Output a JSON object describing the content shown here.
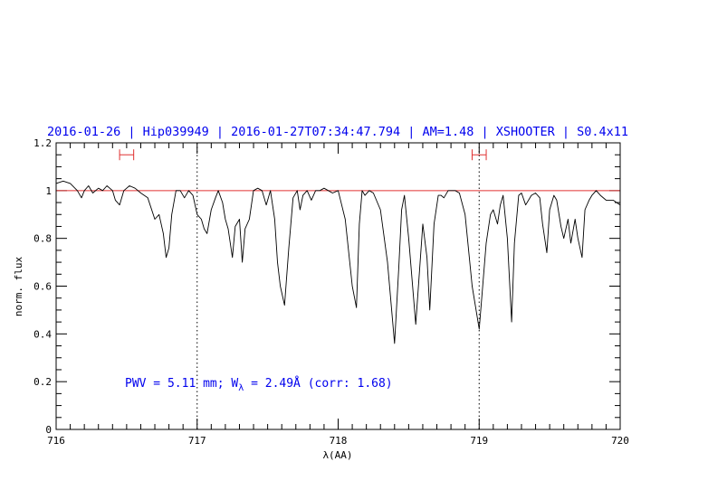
{
  "chart_data": {
    "type": "line",
    "title": "2016-01-26 | Hip039949 | 2016-01-27T07:34:47.794 | AM=1.48 | XSHOOTER | S0.4x11",
    "xlabel": "λ(AA)",
    "ylabel": "norm. flux",
    "xlim": [
      716,
      720
    ],
    "ylim": [
      0,
      1.2
    ],
    "x_ticks": [
      "716",
      "717",
      "718",
      "719",
      "720"
    ],
    "y_ticks": [
      "0",
      "0.2",
      "0.4",
      "0.6",
      "0.8",
      "1",
      "1.2"
    ],
    "annotation": {
      "pre": "PWV = 5.11 mm; W",
      "sub": "λ",
      "post": " = 2.49Å (corr: 1.68)"
    },
    "reference_line_y": 1.0,
    "vertical_dotted_lines_x": [
      717.0,
      719.0
    ],
    "range_markers": [
      {
        "x_start": 716.45,
        "x_end": 716.55,
        "y": 1.15
      },
      {
        "x_start": 718.95,
        "x_end": 719.05,
        "y": 1.15
      }
    ],
    "colors": {
      "spectrum": "#000000",
      "reference_line": "#e03030",
      "markers": "#e03030",
      "title": "#0000ee",
      "annotation": "#0000ee"
    },
    "series": [
      {
        "x": [
          716.0,
          716.05,
          716.1,
          716.15,
          716.18,
          716.2,
          716.23,
          716.26,
          716.3,
          716.33,
          716.36,
          716.4,
          716.42,
          716.45,
          716.48,
          716.52,
          716.56,
          716.6,
          716.65,
          716.7,
          716.73,
          716.76,
          716.78,
          716.8,
          716.82,
          716.85,
          716.88,
          716.91,
          716.94,
          716.97,
          717.0,
          717.03,
          717.05,
          717.07,
          717.1,
          717.13,
          717.15,
          717.18,
          717.2,
          717.22,
          717.25,
          717.27,
          717.3,
          717.32,
          717.34,
          717.37,
          717.4,
          717.43,
          717.46,
          717.49,
          717.52,
          717.55,
          717.57,
          717.59,
          717.62,
          717.65,
          717.68,
          717.71,
          717.73,
          717.75,
          717.78,
          717.81,
          717.84,
          717.87,
          717.9,
          717.93,
          717.96,
          718.0,
          718.05,
          718.1,
          718.13,
          718.15,
          718.17,
          718.19,
          718.22,
          718.25,
          718.3,
          718.35,
          718.4,
          718.43,
          718.45,
          718.47,
          718.5,
          718.55,
          718.6,
          718.63,
          718.65,
          718.68,
          718.71,
          718.73,
          718.75,
          718.78,
          718.8,
          718.83,
          718.86,
          718.9,
          718.95,
          719.0,
          719.05,
          719.08,
          719.1,
          719.13,
          719.15,
          719.17,
          719.2,
          719.23,
          719.25,
          719.28,
          719.3,
          719.33,
          719.35,
          719.37,
          719.4,
          719.43,
          719.45,
          719.48,
          719.5,
          719.53,
          719.55,
          719.58,
          719.6,
          719.63,
          719.65,
          719.68,
          719.7,
          719.73,
          719.75,
          719.78,
          719.8,
          719.83,
          719.86,
          719.9,
          719.95,
          720.0
        ],
        "y": [
          1.03,
          1.04,
          1.03,
          1.0,
          0.97,
          1.0,
          1.02,
          0.99,
          1.01,
          1.0,
          1.02,
          1.0,
          0.96,
          0.94,
          1.0,
          1.02,
          1.01,
          0.99,
          0.97,
          0.88,
          0.9,
          0.82,
          0.72,
          0.76,
          0.9,
          1.0,
          1.0,
          0.97,
          1.0,
          0.98,
          0.9,
          0.88,
          0.84,
          0.82,
          0.92,
          0.97,
          1.0,
          0.95,
          0.88,
          0.84,
          0.72,
          0.85,
          0.88,
          0.7,
          0.84,
          0.88,
          1.0,
          1.01,
          1.0,
          0.94,
          1.0,
          0.88,
          0.7,
          0.6,
          0.52,
          0.76,
          0.97,
          1.0,
          0.92,
          0.98,
          1.0,
          0.96,
          1.0,
          1.0,
          1.01,
          1.0,
          0.99,
          1.0,
          0.88,
          0.6,
          0.51,
          0.86,
          1.0,
          0.98,
          1.0,
          0.99,
          0.92,
          0.7,
          0.36,
          0.68,
          0.92,
          0.98,
          0.8,
          0.44,
          0.86,
          0.72,
          0.5,
          0.86,
          0.98,
          0.98,
          0.97,
          1.0,
          1.0,
          1.0,
          0.99,
          0.9,
          0.6,
          0.42,
          0.78,
          0.9,
          0.92,
          0.86,
          0.94,
          0.98,
          0.8,
          0.45,
          0.78,
          0.98,
          0.99,
          0.94,
          0.96,
          0.98,
          0.99,
          0.97,
          0.86,
          0.74,
          0.92,
          0.98,
          0.96,
          0.85,
          0.8,
          0.88,
          0.78,
          0.88,
          0.8,
          0.72,
          0.92,
          0.96,
          0.98,
          1.0,
          0.98,
          0.96,
          0.96,
          0.94
        ]
      }
    ]
  }
}
